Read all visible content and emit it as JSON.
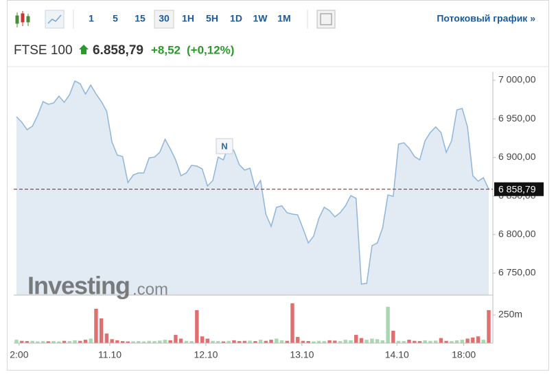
{
  "toolbar": {
    "intervals": [
      "1",
      "5",
      "15",
      "30",
      "1H",
      "5H",
      "1D",
      "1W",
      "1M"
    ],
    "active": "30",
    "stream_link": "Потоковый график »"
  },
  "header": {
    "name": "FTSE 100",
    "price": "6.858,79",
    "change": "+8,52",
    "change_pct": "(+0,12%)"
  },
  "watermark": {
    "brand": "Investing",
    ".com": ".com"
  },
  "chart_data": {
    "type": "area",
    "color": "#8fb5d8",
    "fill": "#e2ebf4",
    "marker_text": "N",
    "xlim": [
      0,
      89
    ],
    "xticks": [
      {
        "value": 0.5,
        "label": "2:00"
      },
      {
        "value": 17.6,
        "label": "11.10"
      },
      {
        "value": 35.7,
        "label": "12.10"
      },
      {
        "value": 53.8,
        "label": "13.10"
      },
      {
        "value": 71.7,
        "label": "14.10"
      },
      {
        "value": 84.3,
        "label": "18:00"
      }
    ],
    "ylim": [
      6721.5,
      7010.7
    ],
    "yticks": [
      {
        "value": 6750,
        "label": "6 750,00"
      },
      {
        "value": 6800,
        "label": "6 800,00"
      },
      {
        "value": 6850,
        "label": "6 850,00"
      },
      {
        "value": 6900,
        "label": "6 900,00"
      },
      {
        "value": 6950,
        "label": "6 950,00"
      },
      {
        "value": 7000,
        "label": "7 000,00"
      }
    ],
    "last_price": {
      "value": 6858.79,
      "label": "6 858,79",
      "line_color": "#8b1a1a"
    },
    "values": [
      6952.8,
      6945.7,
      6935.9,
      6940.4,
      6954.6,
      6972.4,
      6968.9,
      6970.6,
      6979.5,
      6971.5,
      6981.3,
      6999.1,
      6995.6,
      6982.2,
      6993.8,
      6982.2,
      6972.4,
      6959.9,
      6919.9,
      6903.0,
      6901.2,
      6867.4,
      6877.2,
      6879.9,
      6879.9,
      6899.5,
      6900.4,
      6906.6,
      6923.5,
      6911.1,
      6896.8,
      6876.3,
      6879.9,
      6889.7,
      6888.8,
      6885.2,
      6863.0,
      6870.1,
      6900.4,
      6896.8,
      6916.4,
      6908.4,
      6890.6,
      6883.5,
      6886.1,
      6859.4,
      6870.1,
      6826.5,
      6810.5,
      6835.4,
      6837.2,
      6828.3,
      6826.5,
      6825.6,
      6807.8,
      6789.1,
      6798.0,
      6821.2,
      6835.4,
      6831.0,
      6823.0,
      6828.3,
      6837.2,
      6850.5,
      6847.0,
      6735.8,
      6736.7,
      6785.6,
      6789.1,
      6808.7,
      6851.4,
      6849.6,
      6917.3,
      6919.0,
      6911.9,
      6901.2,
      6896.8,
      6921.7,
      6932.4,
      6939.5,
      6932.4,
      6906.6,
      6921.7,
      6961.7,
      6963.5,
      6939.5,
      6876.3,
      6869.2,
      6873.7,
      6858.79
    ],
    "volume": {
      "up_color": "#a8d8b0",
      "down_color": "#e07070",
      "ylim": [
        0,
        366
      ],
      "yticks": [
        {
          "value": 250,
          "label": "250m"
        }
      ],
      "values": [
        30,
        20,
        18,
        20,
        15,
        18,
        16,
        18,
        15,
        20,
        18,
        25,
        20,
        30,
        40,
        305,
        220,
        85,
        35,
        25,
        18,
        15,
        16,
        18,
        15,
        20,
        18,
        22,
        30,
        25,
        73,
        40,
        20,
        18,
        293,
        60,
        40,
        20,
        18,
        15,
        20,
        25,
        18,
        20,
        22,
        18,
        30,
        20,
        30,
        40,
        25,
        20,
        354,
        55,
        20,
        18,
        15,
        20,
        18,
        25,
        22,
        18,
        30,
        25,
        73,
        45,
        30,
        40,
        35,
        25,
        323,
        110,
        20,
        18,
        30,
        20,
        18,
        25,
        20,
        22,
        45,
        20,
        18,
        25,
        30,
        40,
        50,
        60,
        30,
        293
      ]
    }
  }
}
